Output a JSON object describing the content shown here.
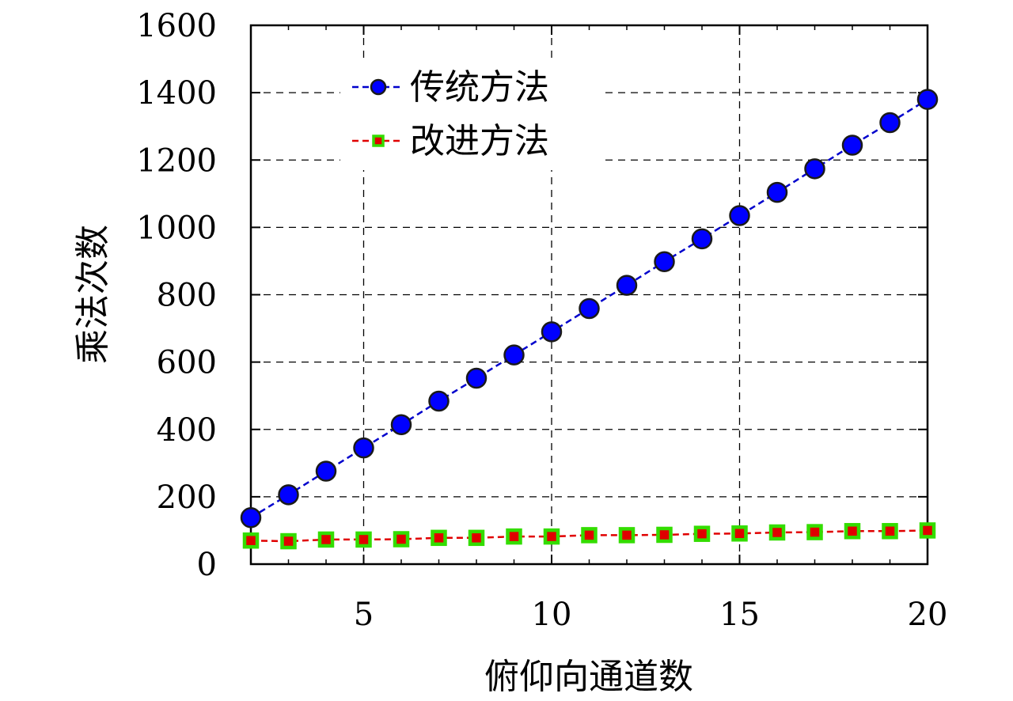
{
  "chart_data": {
    "type": "line",
    "title": "",
    "xlabel": "俯仰向通道数",
    "ylabel": "乘法次数",
    "xlim": [
      2,
      20
    ],
    "ylim": [
      0,
      1600
    ],
    "xticks": [
      5,
      10,
      15,
      20
    ],
    "yticks": [
      0,
      200,
      400,
      600,
      800,
      1000,
      1200,
      1400,
      1600
    ],
    "grid": true,
    "legend_position": "top-left",
    "x": [
      2,
      3,
      4,
      5,
      6,
      7,
      8,
      9,
      10,
      11,
      12,
      13,
      14,
      15,
      16,
      17,
      18,
      19,
      20
    ],
    "series": [
      {
        "name": "传统方法",
        "marker": "circle",
        "line_color": "#0000cc",
        "marker_fill": "#0000ff",
        "marker_edge": "#1a1a1a",
        "values": [
          138,
          206,
          276,
          345,
          414,
          484,
          552,
          621,
          690,
          759,
          828,
          898,
          966,
          1035,
          1104,
          1174,
          1244,
          1311,
          1380
        ]
      },
      {
        "name": "改进方法",
        "marker": "square",
        "line_color": "#e00000",
        "marker_fill": "#e00000",
        "marker_edge": "#33dd00",
        "values": [
          70,
          68,
          73,
          73,
          74,
          78,
          78,
          82,
          82,
          86,
          86,
          87,
          90,
          91,
          94,
          95,
          98,
          98,
          100
        ]
      }
    ]
  }
}
